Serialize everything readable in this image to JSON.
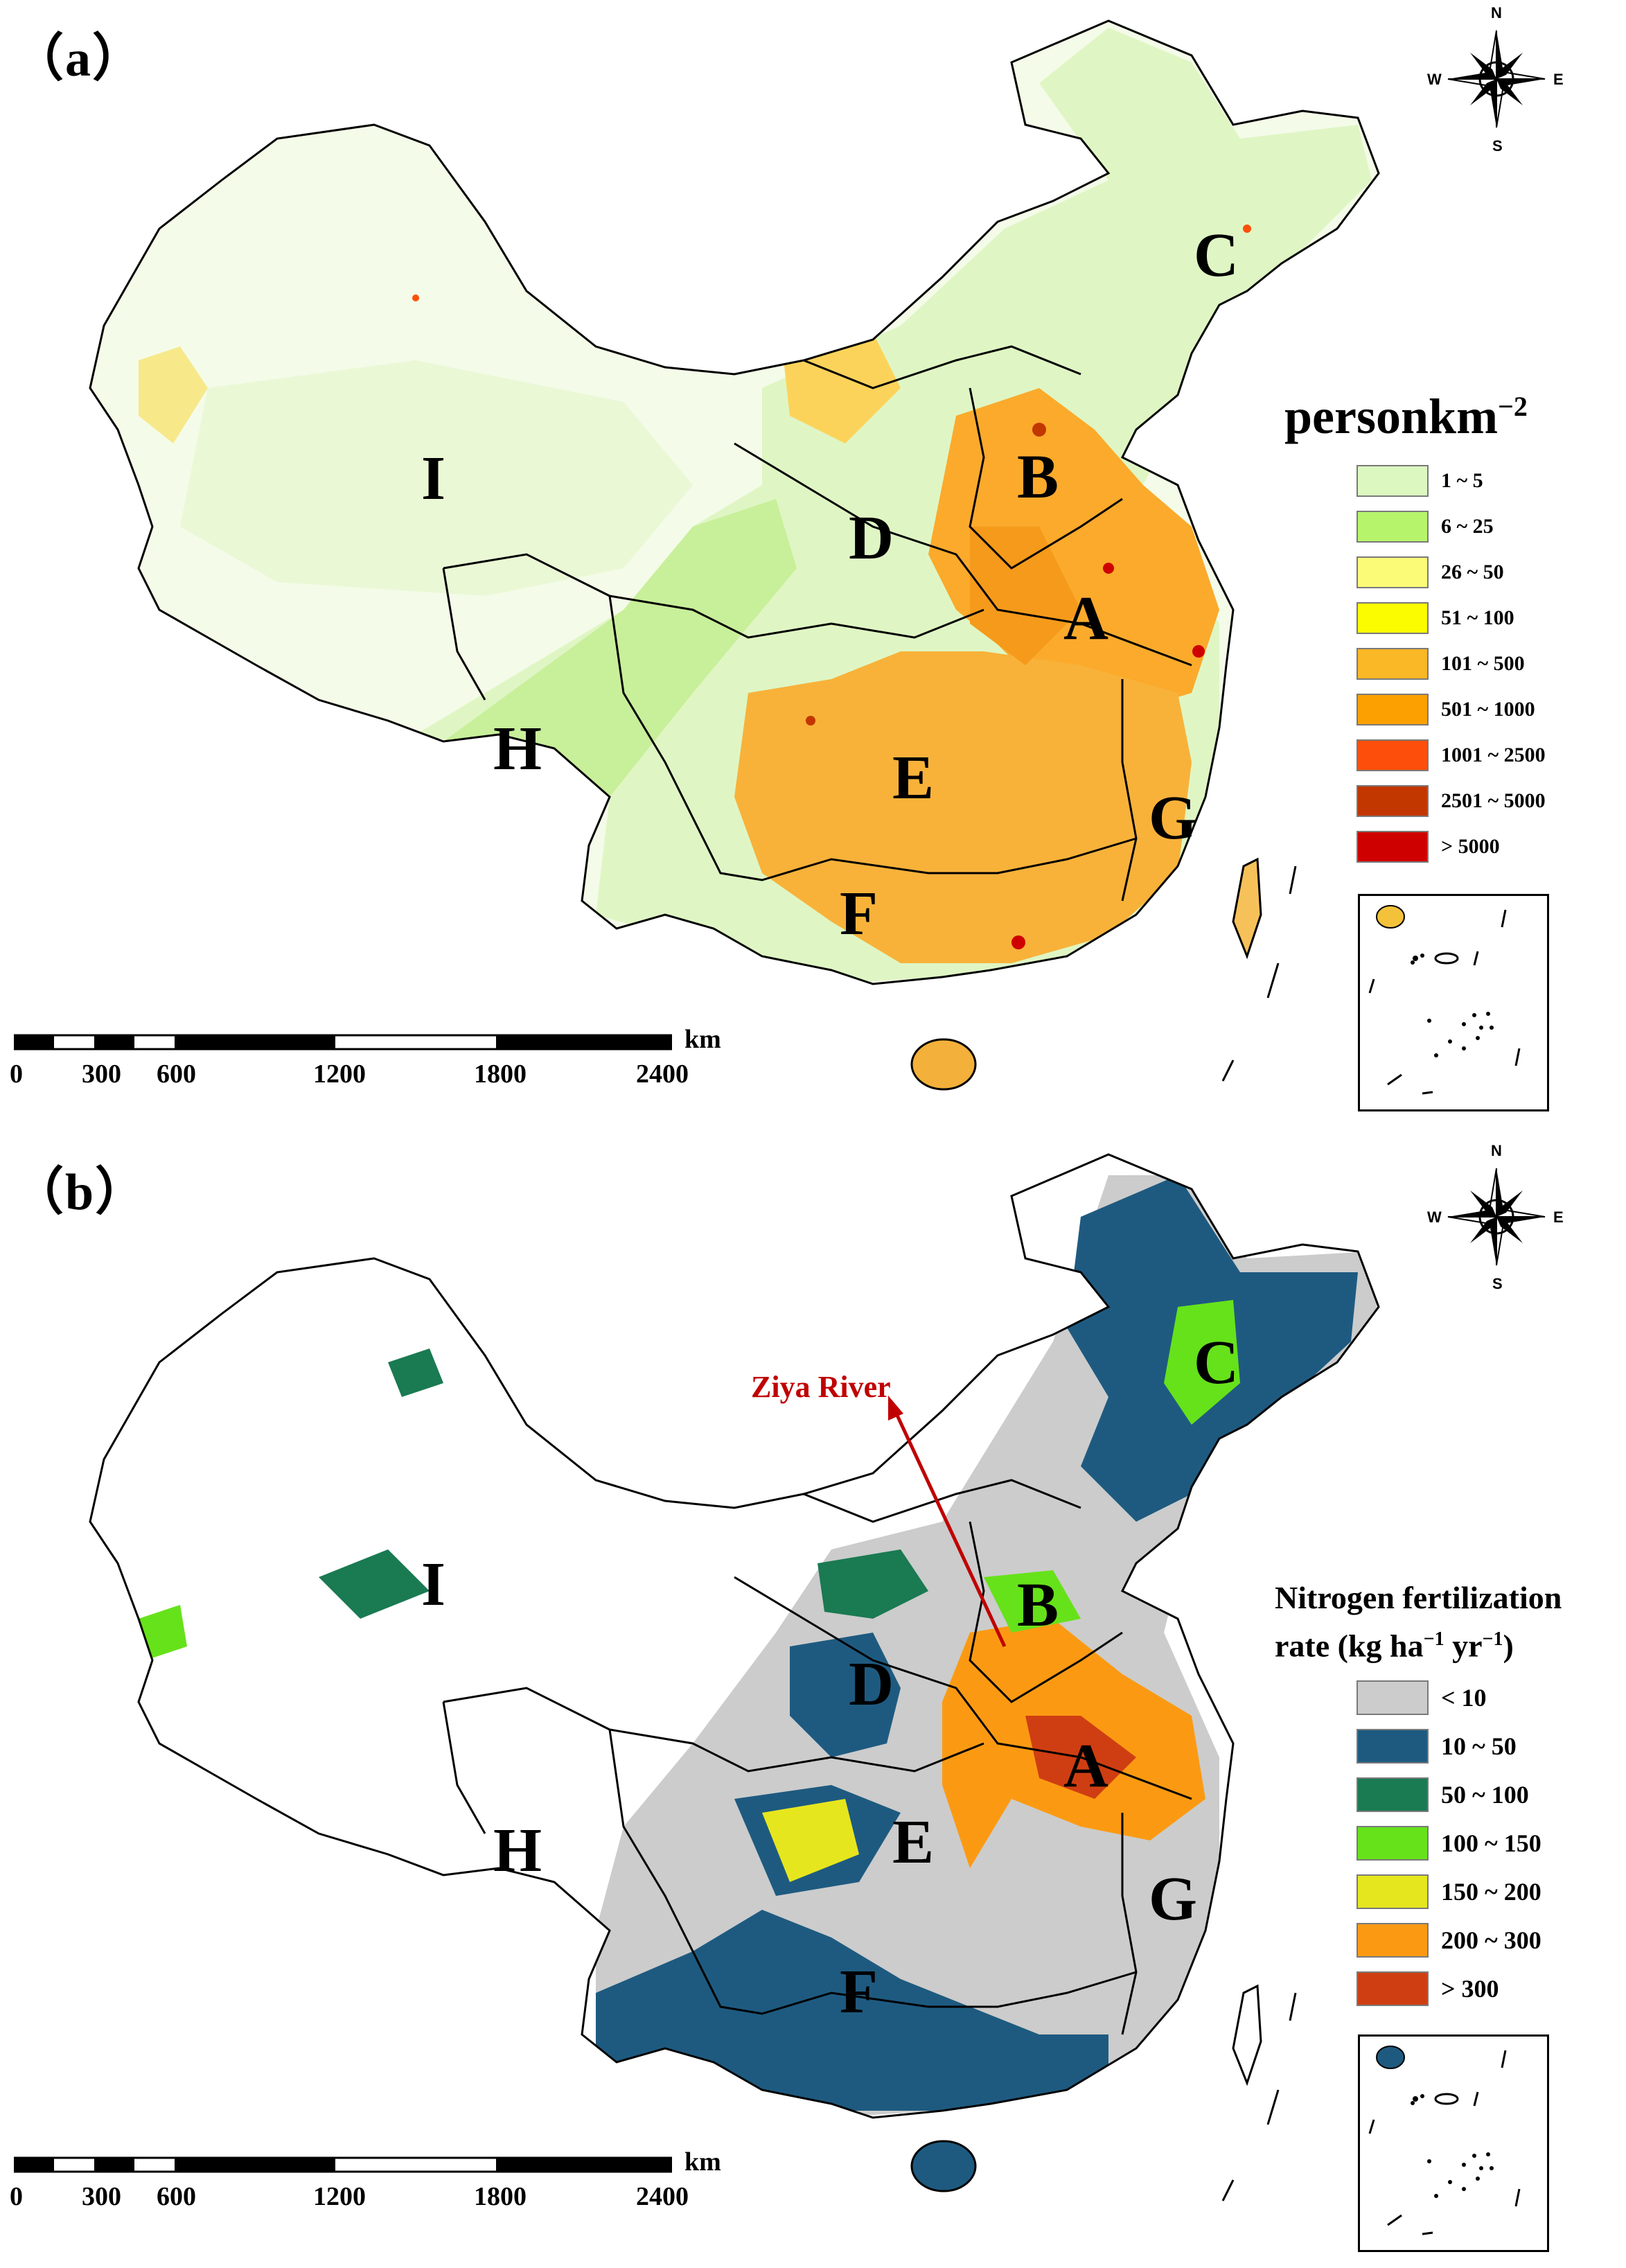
{
  "panel_a": {
    "label": "（a）",
    "legend": {
      "title_main": "person",
      "title_unit": "km",
      "title_exp": "−2",
      "items": [
        {
          "label": "1 ~ 5",
          "color": "#dcf8c0"
        },
        {
          "label": "6 ~ 25",
          "color": "#b6f56b"
        },
        {
          "label": "26 ~ 50",
          "color": "#fbfb78"
        },
        {
          "label": "51 ~ 100",
          "color": "#fcfc00"
        },
        {
          "label": "101 ~ 500",
          "color": "#fab726"
        },
        {
          "label": "501 ~ 1000",
          "color": "#fc9f00"
        },
        {
          "label": "1001 ~ 2500",
          "color": "#fd4f0b"
        },
        {
          "label": "2501 ~ 5000",
          "color": "#c23600"
        },
        {
          "label": "> 5000",
          "color": "#cf0000"
        }
      ]
    },
    "regions": [
      "A",
      "B",
      "C",
      "D",
      "E",
      "F",
      "G",
      "H",
      "I"
    ]
  },
  "panel_b": {
    "label": "（b）",
    "annotation": "Ziya River",
    "legend": {
      "title_line1": "Nitrogen fertilization",
      "title_line2_pre": "rate (kg  ha",
      "title_exp1": "−1",
      "title_mid": " yr",
      "title_exp2": "−1",
      "title_post": ")",
      "items": [
        {
          "label": "< 10",
          "color": "#cccccc"
        },
        {
          "label": "10 ~ 50",
          "color": "#1e5a80"
        },
        {
          "label": "50 ~ 100",
          "color": "#1a7a52"
        },
        {
          "label": "100  ~ 150",
          "color": "#66e21a"
        },
        {
          "label": "150 ~ 200",
          "color": "#e6e61e"
        },
        {
          "label": "200  ~ 300",
          "color": "#fb9a12"
        },
        {
          "label": "> 300",
          "color": "#cf3e12"
        }
      ]
    },
    "regions": [
      "A",
      "B",
      "C",
      "D",
      "E",
      "F",
      "G",
      "H",
      "I"
    ]
  },
  "compass": {
    "n": "N",
    "s": "S",
    "e": "E",
    "w": "W"
  },
  "scale": {
    "unit": "km",
    "ticks": [
      "0",
      "300",
      "600",
      "1200",
      "1800",
      "2400"
    ]
  }
}
